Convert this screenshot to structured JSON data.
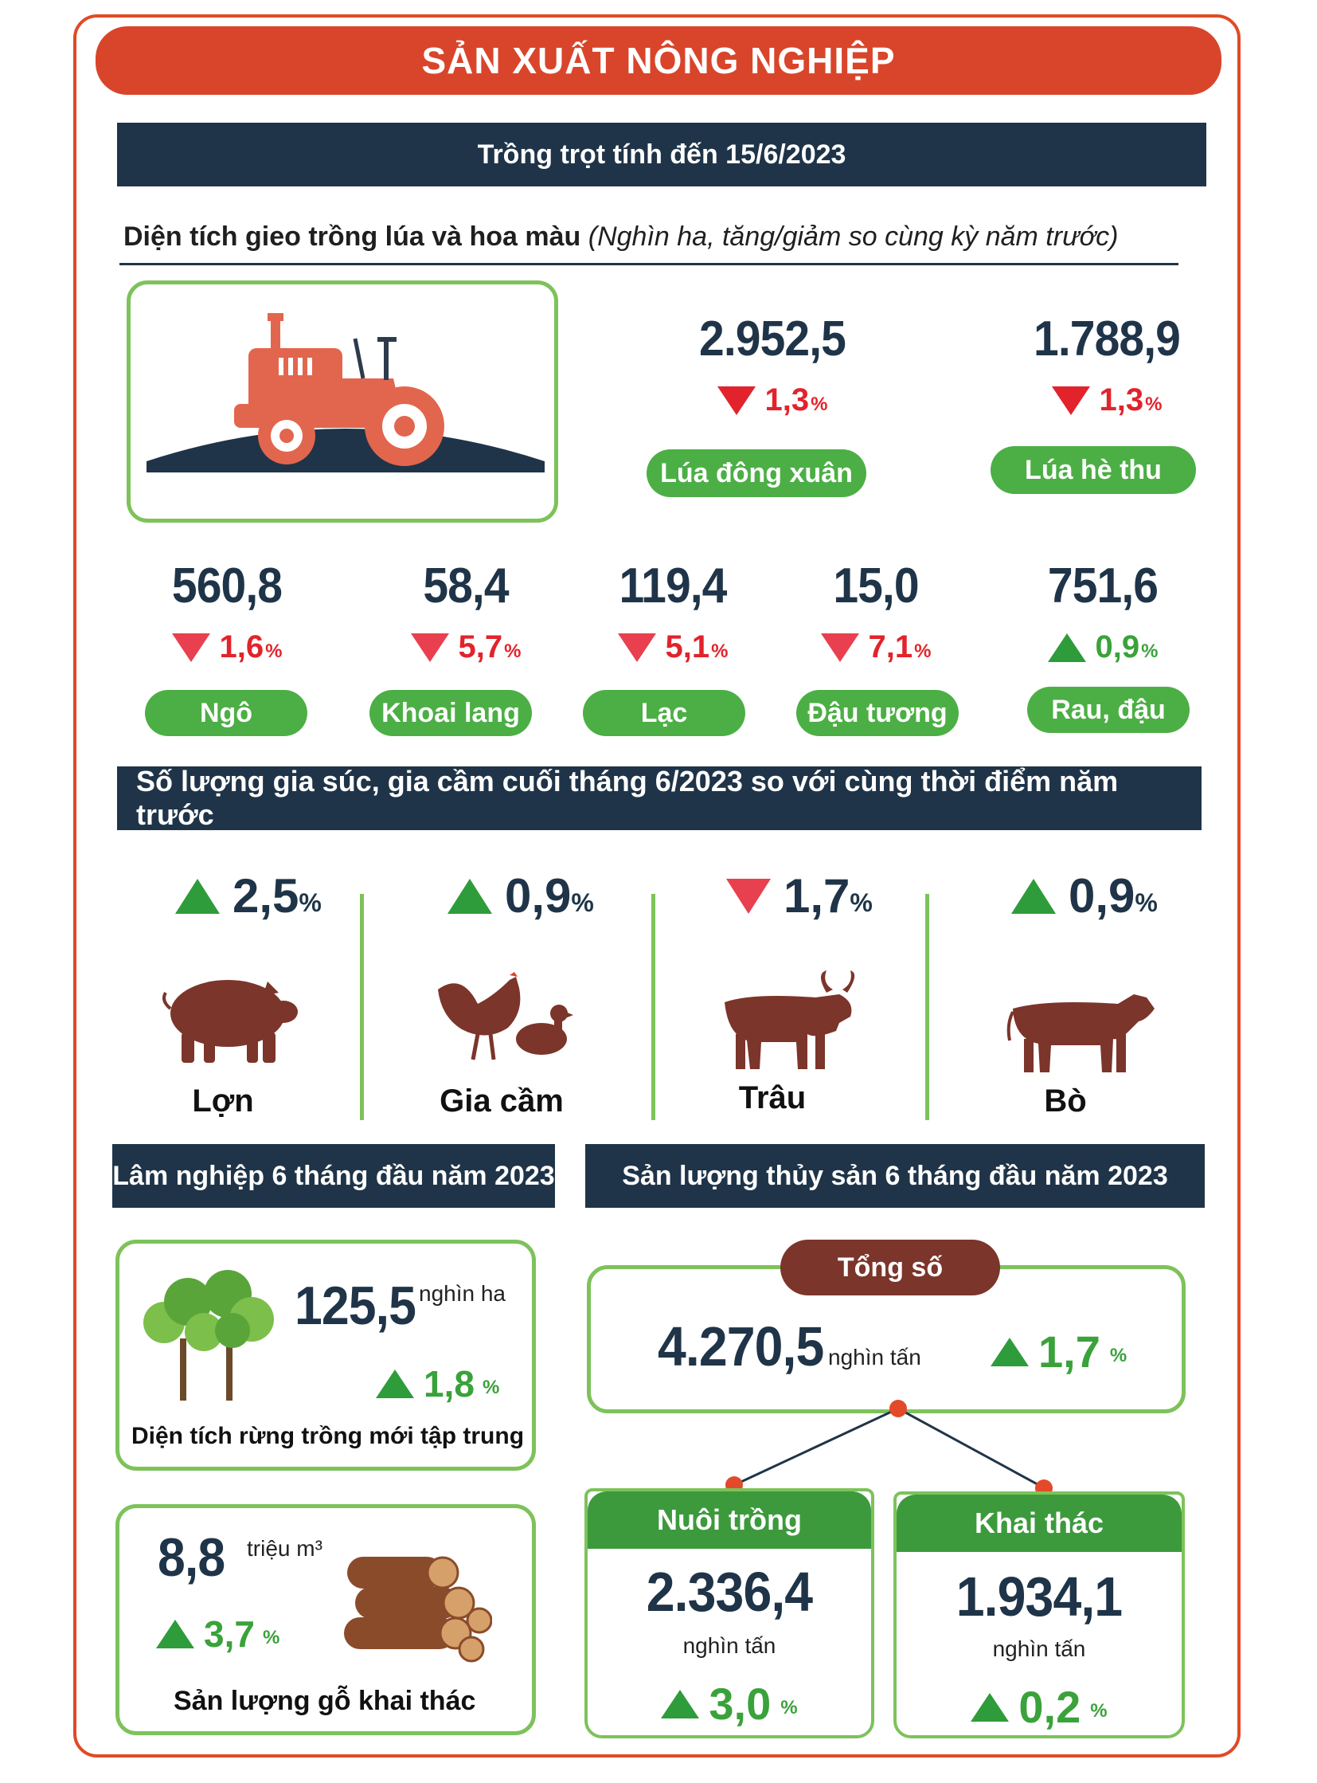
{
  "title": "SẢN XUẤT NÔNG NGHIỆP",
  "crops": {
    "section_title": "Trồng trọt tính đến 15/6/2023",
    "subtitle_bold": "Diện tích gieo trồng lúa và hoa màu",
    "subtitle_italic": "(Nghìn ha, tăng/giảm so cùng kỳ năm trước)",
    "top_items": [
      {
        "value": "2.952,5",
        "change": "1,3",
        "pct": "%",
        "direction": "down",
        "label": "Lúa đông xuân"
      },
      {
        "value": "1.788,9",
        "change": "1,3",
        "pct": "%",
        "direction": "down",
        "label": "Lúa hè thu"
      }
    ],
    "items": [
      {
        "value": "560,8",
        "change": "1,6",
        "pct": "%",
        "direction": "down",
        "label": "Ngô"
      },
      {
        "value": "58,4",
        "change": "5,7",
        "pct": "%",
        "direction": "down",
        "label": "Khoai lang"
      },
      {
        "value": "119,4",
        "change": "5,1",
        "pct": "%",
        "direction": "down",
        "label": "Lạc"
      },
      {
        "value": "15,0",
        "change": "7,1",
        "pct": "%",
        "direction": "down",
        "label": "Đậu tương"
      },
      {
        "value": "751,6",
        "change": "0,9",
        "pct": "%",
        "direction": "up",
        "label": "Rau, đậu"
      }
    ]
  },
  "livestock": {
    "section_title": "Số lượng gia súc, gia cầm cuối tháng 6/2023 so với cùng thời điểm năm trước",
    "items": [
      {
        "change": "2,5",
        "pct": "%",
        "direction": "up",
        "label": "Lợn",
        "icon": "pig-icon"
      },
      {
        "change": "0,9",
        "pct": "%",
        "direction": "up",
        "label": "Gia cầm",
        "icon": "poultry-icon"
      },
      {
        "change": "1,7",
        "pct": "%",
        "direction": "down",
        "label": "Trâu",
        "icon": "buffalo-icon"
      },
      {
        "change": "0,9",
        "pct": "%",
        "direction": "up",
        "label": "Bò",
        "icon": "cow-icon"
      }
    ]
  },
  "forestry": {
    "section_title": "Lâm nghiệp 6 tháng đầu năm 2023",
    "planted": {
      "value": "125,5",
      "unit": "nghìn ha",
      "change": "1,8",
      "pct": "%",
      "label": "Diện tích rừng trồng mới tập trung"
    },
    "timber": {
      "value": "8,8",
      "unit": "triệu m³",
      "change": "3,7",
      "pct": "%",
      "label": "Sản lượng gỗ khai thác"
    }
  },
  "fishery": {
    "section_title": "Sản lượng thủy sản 6 tháng đầu năm 2023",
    "total": {
      "label": "Tổng số",
      "value": "4.270,5",
      "unit": "nghìn tấn",
      "change": "1,7",
      "pct": "%"
    },
    "aquaculture": {
      "label": "Nuôi trồng",
      "value": "2.336,4",
      "unit": "nghìn tấn",
      "change": "3,0",
      "pct": "%"
    },
    "catch": {
      "label": "Khai thác",
      "value": "1.934,1",
      "unit": "nghìn tấn",
      "change": "0,2",
      "pct": "%"
    }
  },
  "colors": {
    "accent": "#d9452a",
    "navy": "#1f3448",
    "green": "#4caf45",
    "up": "#2e9c3a",
    "down": "#e2232b",
    "brown": "#7b352a"
  }
}
